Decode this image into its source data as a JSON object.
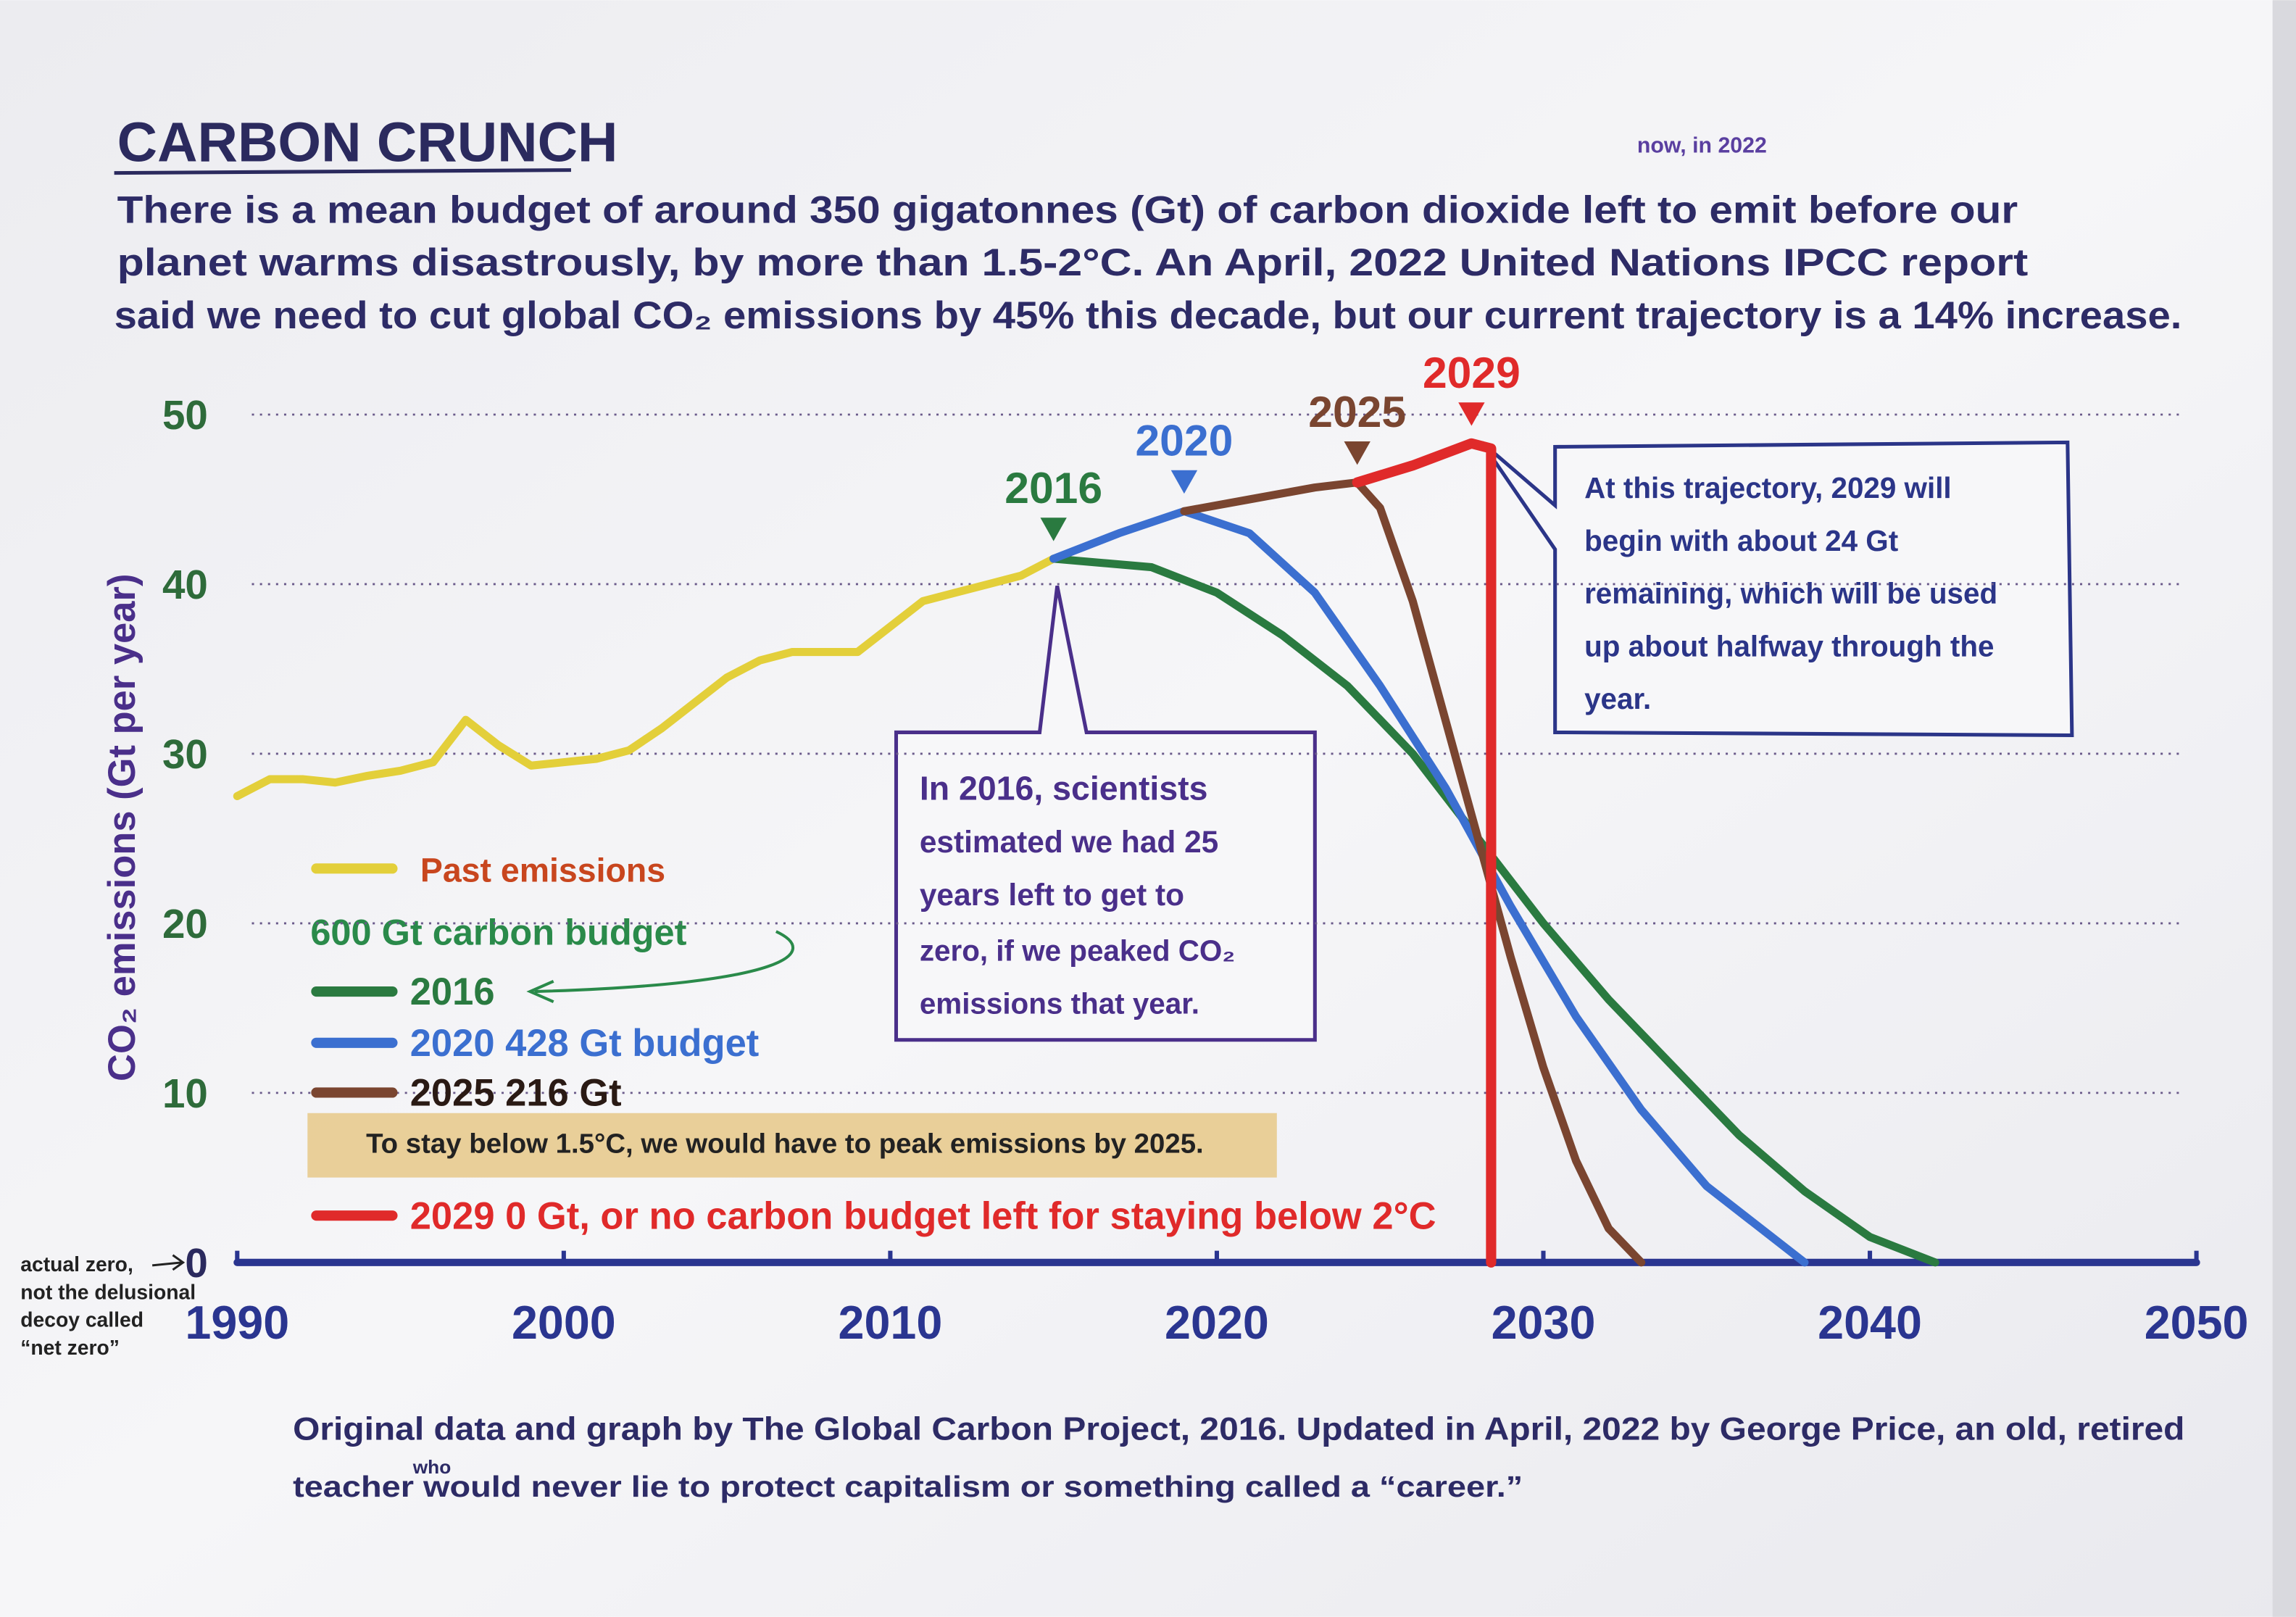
{
  "chart_data": {
    "type": "line",
    "title": "CARBON CRUNCH",
    "subtitle_lines": [
      "There is a mean budget of around 350 gigatonnes (Gt) of carbon dioxide left to emit before our",
      "planet warms disastrously, by more than 1.5-2°C.  An April, 2022 United Nations IPCC report",
      "said we need to cut global CO₂ emissions by 45% this decade, but our current trajectory is a 14% increase."
    ],
    "subtitle_insert": "now, in 2022",
    "y_label": "CO₂ emissions (Gt per year)",
    "xlim": [
      1990,
      2050
    ],
    "xticks": [
      1990,
      2000,
      2010,
      2020,
      2030,
      2040,
      2050
    ],
    "ylim": [
      0,
      50
    ],
    "yticks": [
      0,
      10,
      20,
      30,
      40,
      50
    ],
    "grid": true,
    "zero_note": [
      "actual zero,",
      "not the delusional",
      "decoy called",
      "“net zero”"
    ],
    "series": [
      {
        "name": "Past emissions",
        "color": "#e3cf3a",
        "label_color": "#c8461e",
        "x": [
          1990,
          1991,
          1992,
          1993,
          1994,
          1995,
          1996,
          1997,
          1998,
          1999,
          2000,
          2001,
          2002,
          2003,
          2004,
          2005,
          2006,
          2007,
          2008,
          2009,
          2010,
          2011,
          2012,
          2013,
          2014,
          2015
        ],
        "values": [
          27.5,
          28.5,
          28.5,
          28.3,
          28.7,
          29,
          29.5,
          32,
          30.5,
          29.3,
          29.5,
          29.7,
          30.2,
          31.5,
          33,
          34.5,
          35.5,
          36,
          36,
          36,
          37.5,
          39,
          39.5,
          40,
          40.5,
          41.5
        ]
      },
      {
        "name": "2016",
        "color": "#2a7a40",
        "x": [
          2015,
          2018,
          2020,
          2022,
          2024,
          2026,
          2028,
          2030,
          2032,
          2034,
          2036,
          2038,
          2040,
          2042
        ],
        "values": [
          41.5,
          41,
          39.5,
          37,
          34,
          30,
          25,
          20,
          15.5,
          11.5,
          7.5,
          4.2,
          1.5,
          0
        ]
      },
      {
        "name": "2020 428 Gt budget",
        "color": "#3b6fd0",
        "x": [
          2015,
          2017,
          2019,
          2021,
          2023,
          2025,
          2027,
          2029,
          2031,
          2033,
          2035,
          2037,
          2038
        ],
        "values": [
          41.5,
          43,
          44.3,
          43,
          39.5,
          34,
          28,
          21,
          14.5,
          9,
          4.5,
          1.5,
          0
        ]
      },
      {
        "name": "2025 216 Gt",
        "color": "#7a4530",
        "label_color": "#2a1a14",
        "x": [
          2019,
          2021,
          2023,
          2024.3,
          2025,
          2026,
          2027,
          2028,
          2029,
          2030,
          2031,
          2032,
          2033
        ],
        "values": [
          44.3,
          45,
          45.7,
          46,
          44.5,
          39,
          32,
          25,
          18,
          11.5,
          6,
          2,
          0
        ]
      },
      {
        "name": "2029 0 Gt, or no carbon budget left for staying below 2°C",
        "color": "#e02a2a",
        "x": [
          2024.3,
          2026,
          2027.8,
          2028.4,
          2028.4
        ],
        "values": [
          46,
          47,
          48.3,
          48,
          0
        ]
      }
    ],
    "peak_labels": [
      "2016",
      "2020",
      "2025",
      "2029"
    ],
    "legend_note": "600 Gt carbon budget",
    "tape_note": "To stay below 1.5°C, we would have to peak emissions by 2025.",
    "callouts": [
      {
        "lines": [
          "In 2016, scientists",
          "estimated we had 25",
          "years left to get to",
          "zero, if we peaked CO₂",
          "emissions that year."
        ]
      },
      {
        "lines": [
          "At this trajectory, 2029 will",
          "begin with about 24 Gt",
          "remaining, which will be used",
          "up about halfway through the",
          "year."
        ]
      }
    ],
    "footer_lines": [
      "Original data and graph by The Global Carbon Project, 2016.  Updated in April, 2022 by George Price, an old, retired",
      "teacher would never lie to protect capitalism or something called a “career.”"
    ],
    "footer_insert": "who"
  }
}
